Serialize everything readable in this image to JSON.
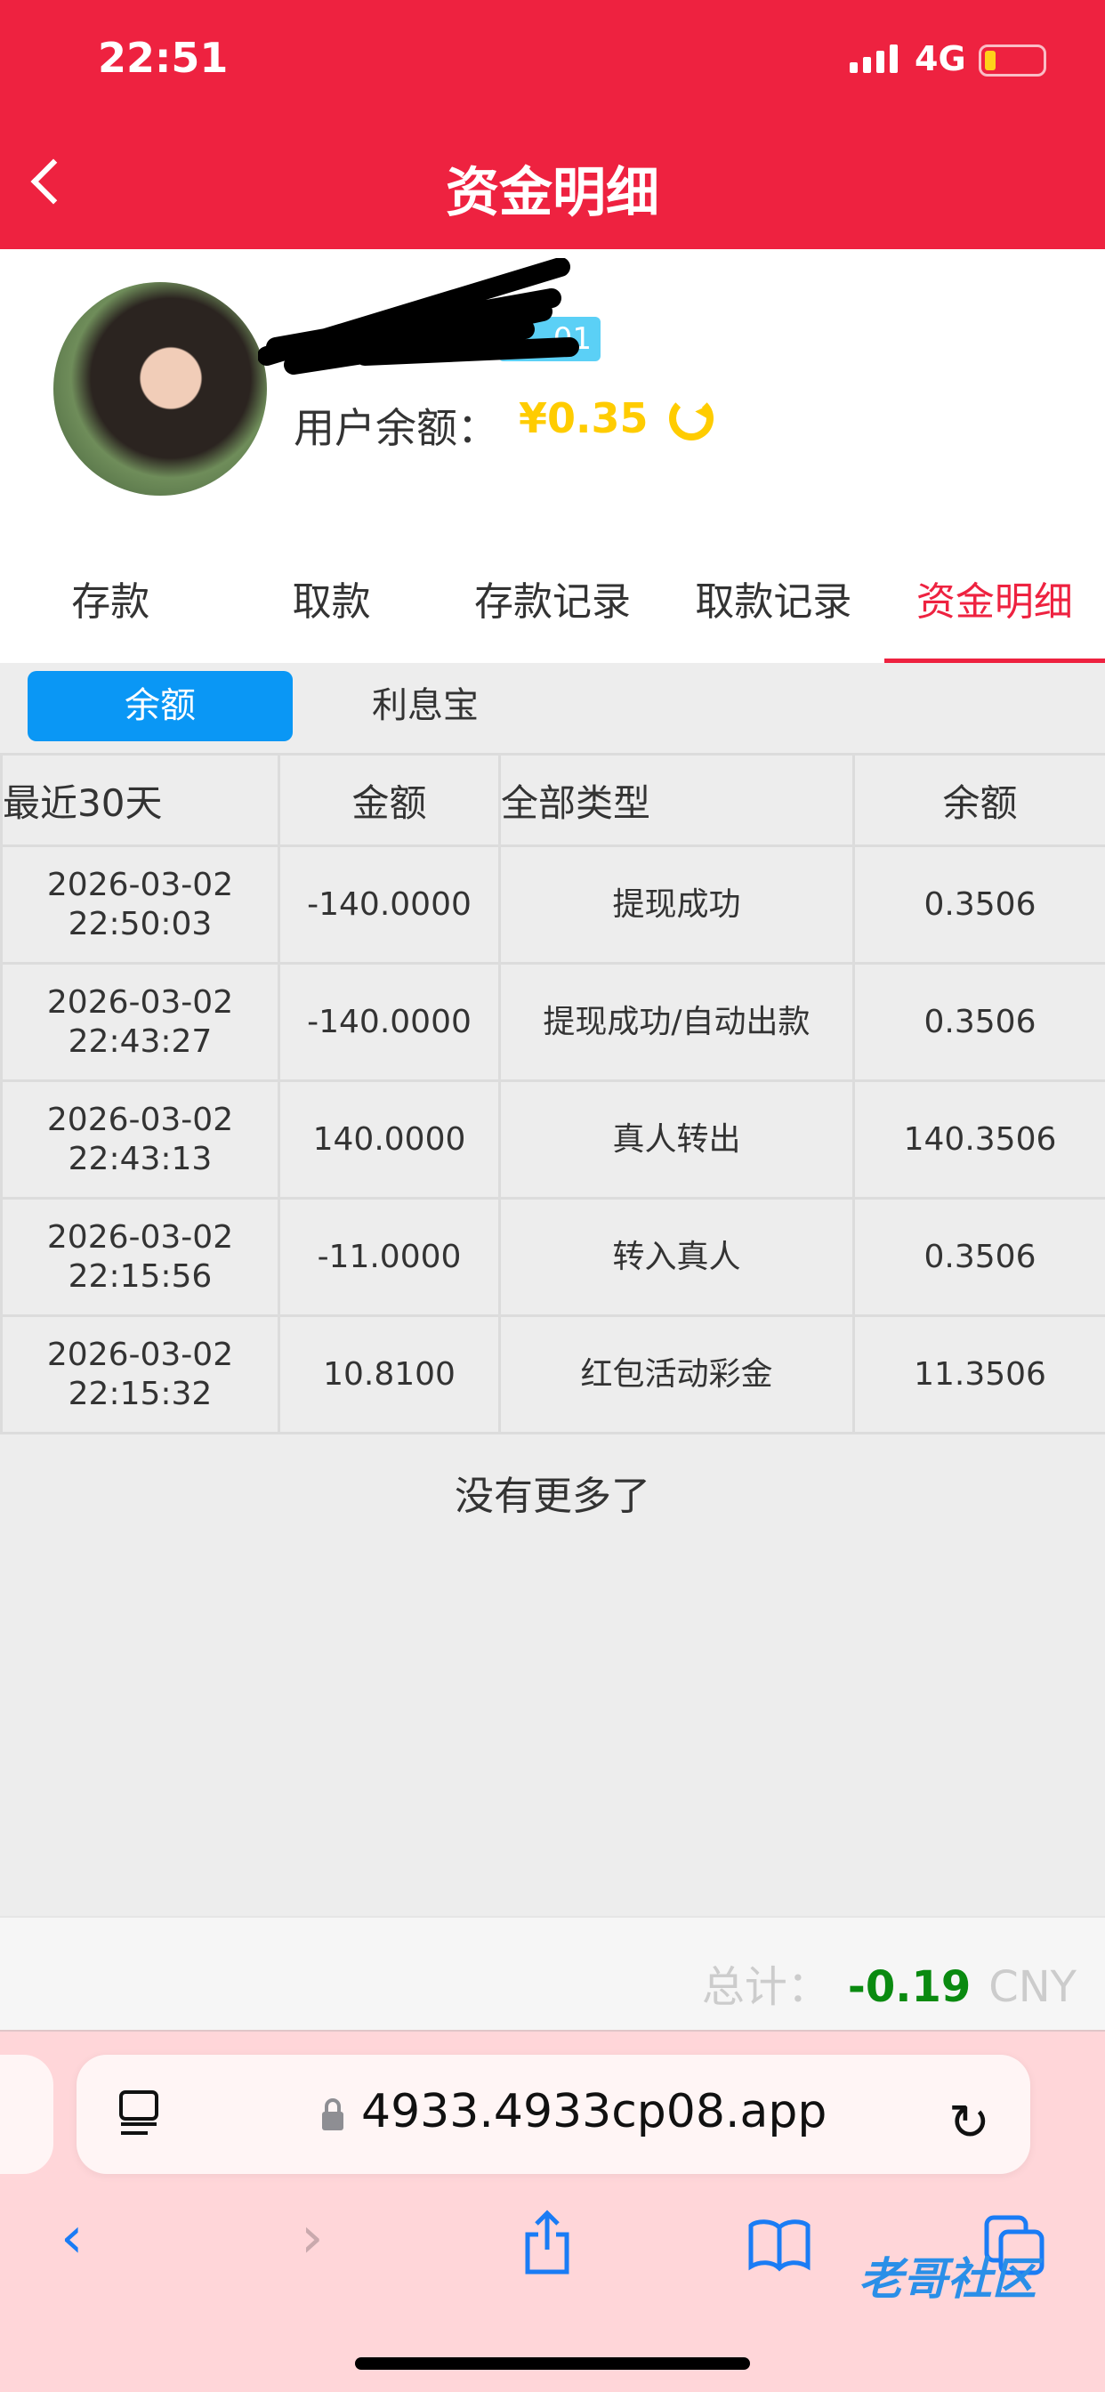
{
  "status_bar": {
    "time": "22:51",
    "network": "4G"
  },
  "header": {
    "title": "资金明细"
  },
  "profile": {
    "badge": "01",
    "balance_label": "用户余额：",
    "balance_value": "¥0.35"
  },
  "tabs": [
    {
      "label": "存款"
    },
    {
      "label": "取款"
    },
    {
      "label": "存款记录"
    },
    {
      "label": "取款记录"
    },
    {
      "label": "资金明细",
      "active": true
    }
  ],
  "subtabs": [
    {
      "label": "余额",
      "active": true
    },
    {
      "label": "利息宝"
    }
  ],
  "table": {
    "headers": [
      "最近30天",
      "金额",
      "全部类型",
      "余额"
    ],
    "rows": [
      {
        "date": "2026-03-02",
        "time": "22:50:03",
        "amount": "-140.0000",
        "type": "提现成功",
        "balance": "0.3506"
      },
      {
        "date": "2026-03-02",
        "time": "22:43:27",
        "amount": "-140.0000",
        "type": "提现成功/自动出款",
        "balance": "0.3506"
      },
      {
        "date": "2026-03-02",
        "time": "22:43:13",
        "amount": "140.0000",
        "type": "真人转出",
        "balance": "140.3506"
      },
      {
        "date": "2026-03-02",
        "time": "22:15:56",
        "amount": "-11.0000",
        "type": "转入真人",
        "balance": "0.3506"
      },
      {
        "date": "2026-03-02",
        "time": "22:15:32",
        "amount": "10.8100",
        "type": "红包活动彩金",
        "balance": "11.3506"
      }
    ]
  },
  "no_more": "没有更多了",
  "footer": {
    "total_label": "总计：",
    "total_value": "-0.19",
    "currency": "CNY"
  },
  "browser": {
    "url": "4933.4933cp08.app",
    "watermark": "老哥社区"
  },
  "colors": {
    "brand": "#ee2240",
    "balance": "#ffcc00",
    "active_subtab": "#0a97f5",
    "total": "#0a8a10"
  }
}
